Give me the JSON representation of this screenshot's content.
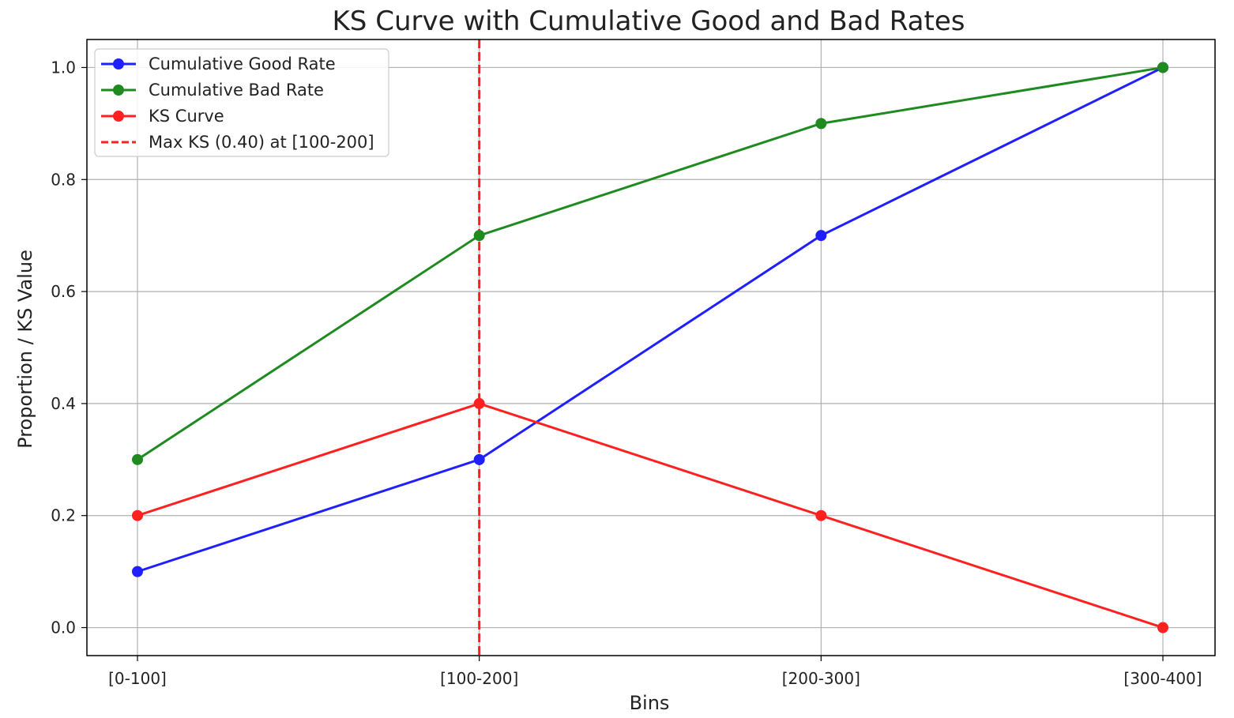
{
  "chart_data": {
    "type": "line",
    "title": "KS Curve with Cumulative Good and Bad Rates",
    "xlabel": "Bins",
    "ylabel": "Proportion / KS Value",
    "categories": [
      "[0-100]",
      "[100-200]",
      "[200-300]",
      "[300-400]"
    ],
    "ylim": [
      -0.05,
      1.05
    ],
    "yticks": [
      0.0,
      0.2,
      0.4,
      0.6,
      0.8,
      1.0
    ],
    "ytick_labels": [
      "0.0",
      "0.2",
      "0.4",
      "0.6",
      "0.8",
      "1.0"
    ],
    "grid": true,
    "legend_position": "top-left",
    "series": [
      {
        "name": "Cumulative Good Rate",
        "color": "#1f1fff",
        "values": [
          0.1,
          0.3,
          0.7,
          1.0
        ]
      },
      {
        "name": "Cumulative Bad Rate",
        "color": "#1f8a1f",
        "values": [
          0.3,
          0.7,
          0.9,
          1.0
        ]
      },
      {
        "name": "KS Curve",
        "color": "#ff2020",
        "values": [
          0.2,
          0.4,
          0.2,
          0.0
        ]
      }
    ],
    "max_ks_line": {
      "label": "Max KS (0.40) at [100-200]",
      "category": "[100-200]",
      "value": 0.4,
      "color": "#ff2020",
      "style": "dashed"
    }
  }
}
